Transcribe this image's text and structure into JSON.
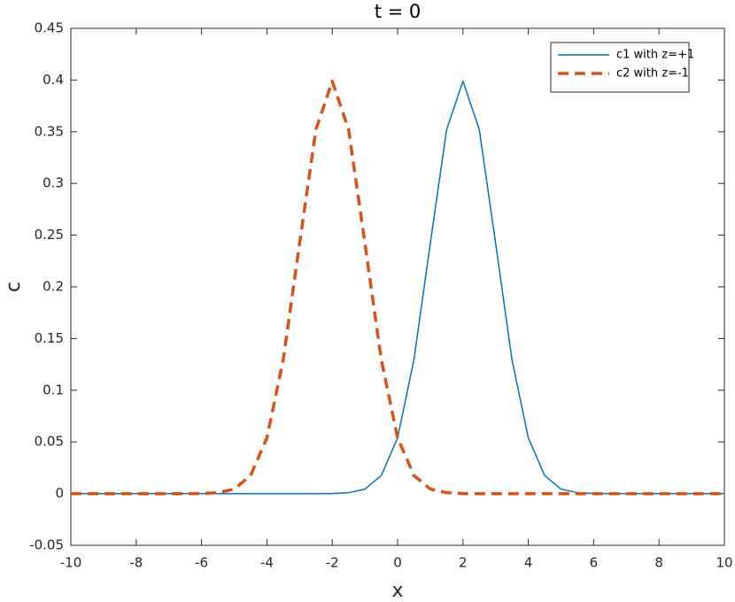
{
  "chart_data": {
    "type": "line",
    "title": "t = 0",
    "xlabel": "x",
    "ylabel": "c",
    "x": [
      -10,
      -9.5,
      -9,
      -8.5,
      -8,
      -7.5,
      -7,
      -6.5,
      -6,
      -5.5,
      -5,
      -4.5,
      -4,
      -3.5,
      -3,
      -2.5,
      -2,
      -1.5,
      -1,
      -0.5,
      0,
      0.5,
      1,
      1.5,
      2,
      2.5,
      3,
      3.5,
      4,
      4.5,
      5,
      5.5,
      6,
      6.5,
      7,
      7.5,
      8,
      8.5,
      9,
      9.5,
      10
    ],
    "series": [
      {
        "name": "c1 with z=+1",
        "color": "#0072bd",
        "dash": "solid",
        "values": [
          0,
          0,
          0,
          0,
          0,
          0,
          0,
          0,
          0,
          0,
          0,
          0,
          0,
          0,
          0,
          0,
          0.0001,
          0.0009,
          0.0044,
          0.0175,
          0.054,
          0.1295,
          0.242,
          0.3521,
          0.3989,
          0.3521,
          0.242,
          0.1295,
          0.054,
          0.0175,
          0.0044,
          0.0009,
          0.0001,
          0,
          0,
          0,
          0,
          0,
          0,
          0,
          0
        ]
      },
      {
        "name": "c2 with z=-1",
        "color": "#d95319",
        "dash": "dashed",
        "values": [
          0,
          0,
          0,
          0,
          0,
          0,
          0,
          0,
          0.0001,
          0.0009,
          0.0044,
          0.0175,
          0.054,
          0.1295,
          0.242,
          0.3521,
          0.3989,
          0.3521,
          0.242,
          0.1295,
          0.054,
          0.0175,
          0.0044,
          0.0009,
          0.0001,
          0,
          0,
          0,
          0,
          0,
          0,
          0,
          0,
          0,
          0,
          0,
          0,
          0,
          0,
          0,
          0
        ]
      }
    ],
    "xlim": [
      -10,
      10
    ],
    "xticks": [
      -10,
      -8,
      -6,
      -4,
      -2,
      0,
      2,
      4,
      6,
      8,
      10
    ],
    "ylim": [
      -0.05,
      0.45
    ],
    "yticks": [
      -0.05,
      0,
      0.05,
      0.1,
      0.15,
      0.2,
      0.25,
      0.3,
      0.35,
      0.4,
      0.45
    ],
    "grid": false,
    "legend": "top-right"
  }
}
